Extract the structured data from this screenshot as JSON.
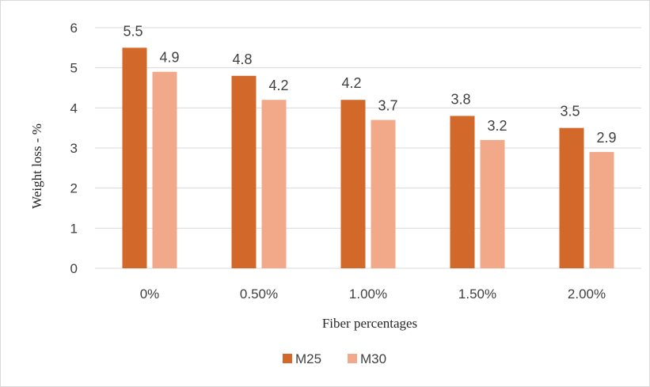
{
  "chart_data": {
    "type": "bar",
    "title": "",
    "xlabel": "Fiber percentages",
    "ylabel": "Weight loss - %",
    "categories": [
      "0%",
      "0.50%",
      "1.00%",
      "1.50%",
      "2.00%"
    ],
    "series": [
      {
        "name": "M25",
        "values": [
          5.5,
          4.8,
          4.2,
          3.8,
          3.5
        ],
        "color": "#D2692A"
      },
      {
        "name": "M30",
        "values": [
          4.9,
          4.2,
          3.7,
          3.2,
          2.9
        ],
        "color": "#F2A98A"
      }
    ],
    "ylim": [
      0,
      6
    ],
    "yticks": [
      "0",
      "1",
      "2",
      "3",
      "4",
      "5",
      "6"
    ],
    "data_labels": {
      "M25": [
        "5.5",
        "4.8",
        "4.2",
        "3.8",
        "3.5"
      ],
      "M30": [
        "4.9",
        "4.2",
        "3.7",
        "3.2",
        "2.9"
      ]
    },
    "grid": true,
    "legend": "bottom-center",
    "gridline_color": "#d9d9d9"
  }
}
